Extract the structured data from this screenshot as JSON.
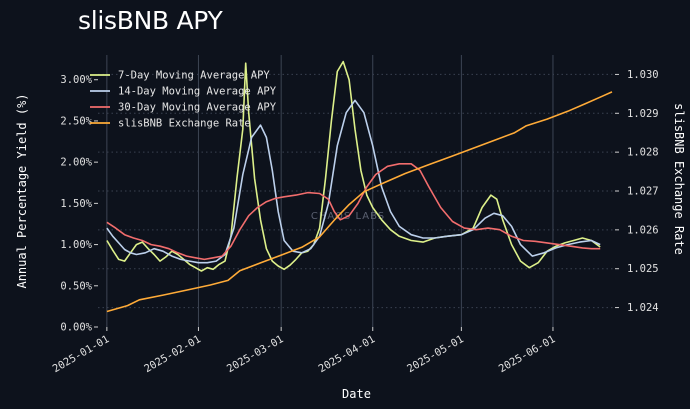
{
  "page_title": "slisBNB APY",
  "watermark": "CHAOS LABS",
  "chart_data": {
    "type": "line",
    "title": "slisBNB APY",
    "xlabel": "Date",
    "ylabel_left": "Annual Percentage Yield (%)",
    "ylabel_right": "slisBNB Exchange Rate",
    "x_tick_labels": [
      "2025-01-01",
      "2025-02-01",
      "2025-03-01",
      "2025-04-01",
      "2025-05-01",
      "2025-06-01"
    ],
    "y_left_ticks": [
      "0.00%",
      "0.50%",
      "1.00%",
      "1.50%",
      "2.00%",
      "2.50%",
      "3.00%"
    ],
    "y_right_ticks": [
      "1.024",
      "1.025",
      "1.026",
      "1.027",
      "1.028",
      "1.029",
      "1.030"
    ],
    "y_left_range": [
      0,
      3.3
    ],
    "y_right_range": [
      1.0235,
      1.0305
    ],
    "x_range_days": [
      -3,
      172
    ],
    "grid": true,
    "legend_position": "top-left",
    "colors": {
      "7d": "#ddf08a",
      "14d": "#bcd0ec",
      "30d": "#f26d6d",
      "rate": "#ffab38",
      "grid_vertical": "#3d4554",
      "grid_horizontal": "#3a4150"
    },
    "series": [
      {
        "name": "7-Day Moving Average APY",
        "key": "7d",
        "axis": "left",
        "points": [
          [
            "2025-01-01",
            1.05
          ],
          [
            "2025-01-03",
            0.93
          ],
          [
            "2025-01-05",
            0.82
          ],
          [
            "2025-01-07",
            0.8
          ],
          [
            "2025-01-09",
            0.9
          ],
          [
            "2025-01-11",
            1.0
          ],
          [
            "2025-01-13",
            1.03
          ],
          [
            "2025-01-15",
            0.95
          ],
          [
            "2025-01-17",
            0.88
          ],
          [
            "2025-01-19",
            0.8
          ],
          [
            "2025-01-21",
            0.85
          ],
          [
            "2025-01-23",
            0.92
          ],
          [
            "2025-01-25",
            0.88
          ],
          [
            "2025-01-27",
            0.82
          ],
          [
            "2025-01-29",
            0.76
          ],
          [
            "2025-01-31",
            0.72
          ],
          [
            "2025-02-02",
            0.68
          ],
          [
            "2025-02-04",
            0.72
          ],
          [
            "2025-02-06",
            0.7
          ],
          [
            "2025-02-08",
            0.76
          ],
          [
            "2025-02-10",
            0.8
          ],
          [
            "2025-02-12",
            1.1
          ],
          [
            "2025-02-14",
            1.8
          ],
          [
            "2025-02-16",
            2.4
          ],
          [
            "2025-02-17",
            3.2
          ],
          [
            "2025-02-18",
            2.6
          ],
          [
            "2025-02-20",
            1.8
          ],
          [
            "2025-02-22",
            1.3
          ],
          [
            "2025-02-24",
            0.95
          ],
          [
            "2025-02-26",
            0.8
          ],
          [
            "2025-02-28",
            0.74
          ],
          [
            "2025-03-02",
            0.7
          ],
          [
            "2025-03-04",
            0.75
          ],
          [
            "2025-03-06",
            0.82
          ],
          [
            "2025-03-08",
            0.9
          ],
          [
            "2025-03-10",
            0.92
          ],
          [
            "2025-03-12",
            1.0
          ],
          [
            "2025-03-14",
            1.2
          ],
          [
            "2025-03-16",
            1.8
          ],
          [
            "2025-03-18",
            2.5
          ],
          [
            "2025-03-20",
            3.1
          ],
          [
            "2025-03-22",
            3.22
          ],
          [
            "2025-03-24",
            3.0
          ],
          [
            "2025-03-26",
            2.4
          ],
          [
            "2025-03-28",
            1.9
          ],
          [
            "2025-03-30",
            1.6
          ],
          [
            "2025-04-01",
            1.45
          ],
          [
            "2025-04-04",
            1.3
          ],
          [
            "2025-04-07",
            1.18
          ],
          [
            "2025-04-10",
            1.1
          ],
          [
            "2025-04-14",
            1.05
          ],
          [
            "2025-04-18",
            1.03
          ],
          [
            "2025-04-22",
            1.08
          ],
          [
            "2025-04-26",
            1.1
          ],
          [
            "2025-05-01",
            1.12
          ],
          [
            "2025-05-05",
            1.2
          ],
          [
            "2025-05-08",
            1.45
          ],
          [
            "2025-05-11",
            1.6
          ],
          [
            "2025-05-13",
            1.55
          ],
          [
            "2025-05-15",
            1.3
          ],
          [
            "2025-05-18",
            1.0
          ],
          [
            "2025-05-21",
            0.8
          ],
          [
            "2025-05-24",
            0.72
          ],
          [
            "2025-05-27",
            0.78
          ],
          [
            "2025-05-30",
            0.92
          ],
          [
            "2025-06-02",
            0.98
          ],
          [
            "2025-06-05",
            1.02
          ],
          [
            "2025-06-08",
            1.05
          ],
          [
            "2025-06-11",
            1.08
          ],
          [
            "2025-06-14",
            1.05
          ],
          [
            "2025-06-17",
            0.97
          ]
        ]
      },
      {
        "name": "14-Day Moving Average APY",
        "key": "14d",
        "axis": "left",
        "points": [
          [
            "2025-01-01",
            1.2
          ],
          [
            "2025-01-03",
            1.1
          ],
          [
            "2025-01-05",
            1.02
          ],
          [
            "2025-01-07",
            0.94
          ],
          [
            "2025-01-09",
            0.9
          ],
          [
            "2025-01-11",
            0.88
          ],
          [
            "2025-01-14",
            0.9
          ],
          [
            "2025-01-17",
            0.95
          ],
          [
            "2025-01-20",
            0.92
          ],
          [
            "2025-01-23",
            0.86
          ],
          [
            "2025-01-26",
            0.82
          ],
          [
            "2025-01-29",
            0.8
          ],
          [
            "2025-02-01",
            0.78
          ],
          [
            "2025-02-04",
            0.78
          ],
          [
            "2025-02-07",
            0.8
          ],
          [
            "2025-02-10",
            0.88
          ],
          [
            "2025-02-13",
            1.2
          ],
          [
            "2025-02-16",
            1.85
          ],
          [
            "2025-02-19",
            2.3
          ],
          [
            "2025-02-22",
            2.45
          ],
          [
            "2025-02-24",
            2.3
          ],
          [
            "2025-02-26",
            1.9
          ],
          [
            "2025-02-28",
            1.4
          ],
          [
            "2025-03-02",
            1.05
          ],
          [
            "2025-03-05",
            0.92
          ],
          [
            "2025-03-08",
            0.9
          ],
          [
            "2025-03-11",
            0.95
          ],
          [
            "2025-03-14",
            1.1
          ],
          [
            "2025-03-17",
            1.5
          ],
          [
            "2025-03-20",
            2.2
          ],
          [
            "2025-03-23",
            2.6
          ],
          [
            "2025-03-26",
            2.75
          ],
          [
            "2025-03-29",
            2.6
          ],
          [
            "2025-04-01",
            2.2
          ],
          [
            "2025-04-04",
            1.7
          ],
          [
            "2025-04-07",
            1.4
          ],
          [
            "2025-04-10",
            1.22
          ],
          [
            "2025-04-14",
            1.12
          ],
          [
            "2025-04-18",
            1.08
          ],
          [
            "2025-04-22",
            1.08
          ],
          [
            "2025-04-26",
            1.1
          ],
          [
            "2025-05-01",
            1.12
          ],
          [
            "2025-05-05",
            1.18
          ],
          [
            "2025-05-09",
            1.32
          ],
          [
            "2025-05-12",
            1.38
          ],
          [
            "2025-05-15",
            1.35
          ],
          [
            "2025-05-18",
            1.22
          ],
          [
            "2025-05-21",
            1.0
          ],
          [
            "2025-05-25",
            0.86
          ],
          [
            "2025-05-29",
            0.9
          ],
          [
            "2025-06-02",
            0.96
          ],
          [
            "2025-06-06",
            1.0
          ],
          [
            "2025-06-10",
            1.03
          ],
          [
            "2025-06-14",
            1.05
          ],
          [
            "2025-06-17",
            1.0
          ]
        ]
      },
      {
        "name": "30-Day Moving Average APY",
        "key": "30d",
        "axis": "left",
        "points": [
          [
            "2025-01-01",
            1.27
          ],
          [
            "2025-01-04",
            1.2
          ],
          [
            "2025-01-07",
            1.12
          ],
          [
            "2025-01-10",
            1.08
          ],
          [
            "2025-01-13",
            1.05
          ],
          [
            "2025-01-16",
            1.0
          ],
          [
            "2025-01-19",
            0.98
          ],
          [
            "2025-01-22",
            0.95
          ],
          [
            "2025-01-25",
            0.9
          ],
          [
            "2025-01-28",
            0.86
          ],
          [
            "2025-01-31",
            0.84
          ],
          [
            "2025-02-03",
            0.82
          ],
          [
            "2025-02-06",
            0.84
          ],
          [
            "2025-02-09",
            0.86
          ],
          [
            "2025-02-12",
            0.98
          ],
          [
            "2025-02-15",
            1.18
          ],
          [
            "2025-02-18",
            1.35
          ],
          [
            "2025-02-21",
            1.45
          ],
          [
            "2025-02-24",
            1.52
          ],
          [
            "2025-02-27",
            1.56
          ],
          [
            "2025-03-02",
            1.58
          ],
          [
            "2025-03-06",
            1.6
          ],
          [
            "2025-03-10",
            1.63
          ],
          [
            "2025-03-14",
            1.62
          ],
          [
            "2025-03-17",
            1.55
          ],
          [
            "2025-03-19",
            1.4
          ],
          [
            "2025-03-21",
            1.3
          ],
          [
            "2025-03-24",
            1.35
          ],
          [
            "2025-03-27",
            1.5
          ],
          [
            "2025-03-30",
            1.7
          ],
          [
            "2025-04-02",
            1.85
          ],
          [
            "2025-04-06",
            1.95
          ],
          [
            "2025-04-10",
            1.98
          ],
          [
            "2025-04-14",
            1.98
          ],
          [
            "2025-04-17",
            1.9
          ],
          [
            "2025-04-20",
            1.7
          ],
          [
            "2025-04-24",
            1.45
          ],
          [
            "2025-04-28",
            1.28
          ],
          [
            "2025-05-02",
            1.2
          ],
          [
            "2025-05-06",
            1.18
          ],
          [
            "2025-05-10",
            1.2
          ],
          [
            "2025-05-14",
            1.18
          ],
          [
            "2025-05-18",
            1.1
          ],
          [
            "2025-05-22",
            1.05
          ],
          [
            "2025-05-26",
            1.04
          ],
          [
            "2025-05-30",
            1.02
          ],
          [
            "2025-06-03",
            1.0
          ],
          [
            "2025-06-07",
            0.98
          ],
          [
            "2025-06-11",
            0.96
          ],
          [
            "2025-06-14",
            0.95
          ],
          [
            "2025-06-17",
            0.95
          ]
        ]
      },
      {
        "name": "slisBNB Exchange Rate",
        "key": "rate",
        "axis": "right",
        "points": [
          [
            "2025-01-01",
            1.0239
          ],
          [
            "2025-01-08",
            1.02405
          ],
          [
            "2025-01-12",
            1.0242
          ],
          [
            "2025-01-20",
            1.02432
          ],
          [
            "2025-01-28",
            1.02445
          ],
          [
            "2025-02-05",
            1.02458
          ],
          [
            "2025-02-11",
            1.0247
          ],
          [
            "2025-02-15",
            1.02495
          ],
          [
            "2025-02-22",
            1.02515
          ],
          [
            "2025-03-01",
            1.02535
          ],
          [
            "2025-03-08",
            1.02555
          ],
          [
            "2025-03-14",
            1.02582
          ],
          [
            "2025-03-19",
            1.02625
          ],
          [
            "2025-03-24",
            1.02665
          ],
          [
            "2025-03-29",
            1.02698
          ],
          [
            "2025-04-05",
            1.02722
          ],
          [
            "2025-04-12",
            1.02745
          ],
          [
            "2025-04-20",
            1.02768
          ],
          [
            "2025-04-28",
            1.0279
          ],
          [
            "2025-05-05",
            1.0281
          ],
          [
            "2025-05-12",
            1.0283
          ],
          [
            "2025-05-19",
            1.0285
          ],
          [
            "2025-05-23",
            1.02868
          ],
          [
            "2025-05-30",
            1.02885
          ],
          [
            "2025-06-06",
            1.02905
          ],
          [
            "2025-06-12",
            1.02925
          ],
          [
            "2025-06-18",
            1.02945
          ],
          [
            "2025-06-21",
            1.02955
          ]
        ]
      }
    ]
  }
}
